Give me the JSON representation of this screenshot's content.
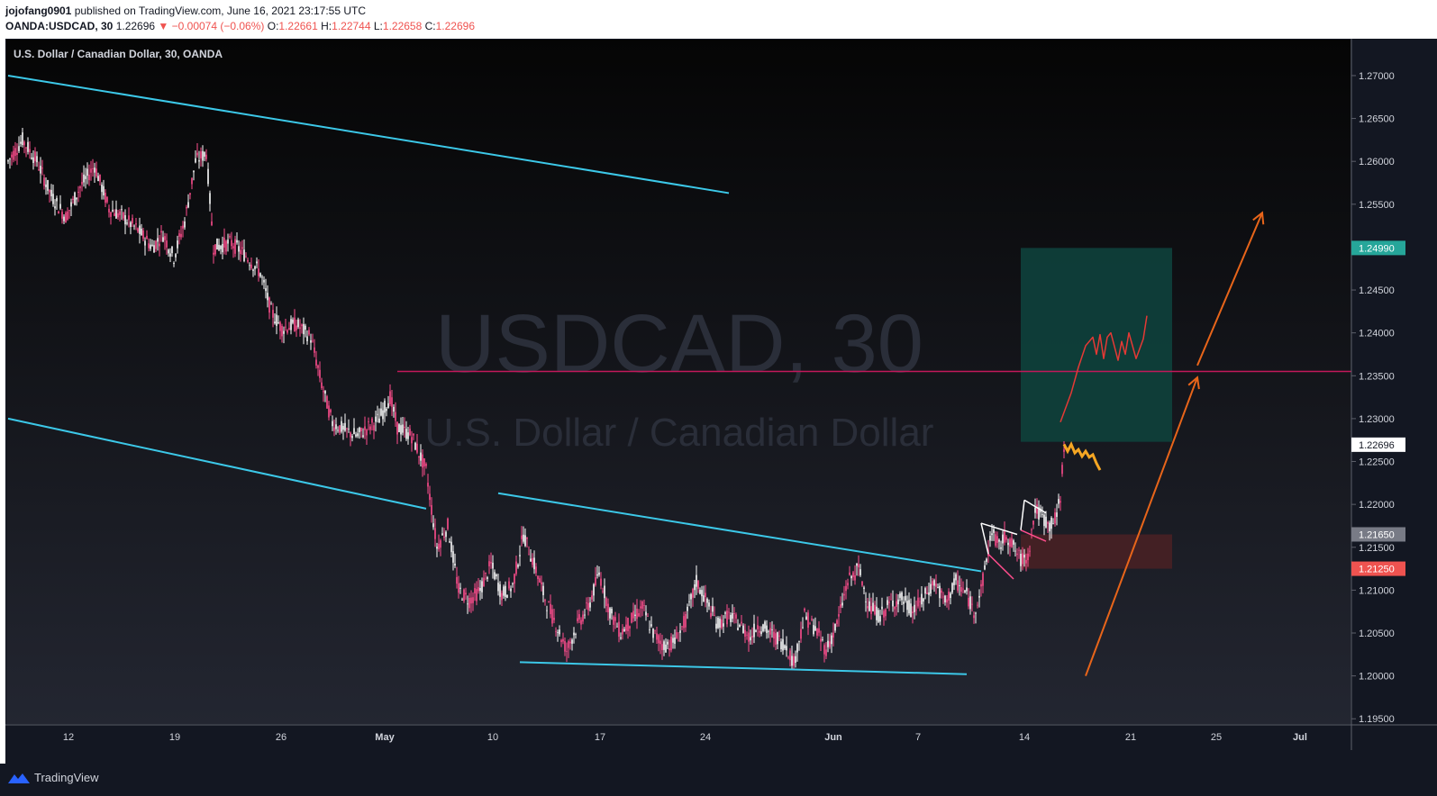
{
  "header": {
    "author": "jojofang0901",
    "published": "published on TradingView.com, June 16, 2021 23:17:55 UTC",
    "symbol": "OANDA:USDCAD, 30",
    "last": "1.22696",
    "change": "▼ −0.00074 (−0.06%)",
    "o_label": "O:",
    "o_value": "1.22661",
    "h_label": "H:",
    "h_value": "1.22744",
    "l_label": "L:",
    "l_value": "1.22658",
    "c_label": "C:",
    "c_value": "1.22696"
  },
  "chart_title": "U.S. Dollar / Canadian Dollar, 30, OANDA",
  "watermark": {
    "main": "USDCAD, 30",
    "sub": "U.S. Dollar / Canadian Dollar"
  },
  "footer": {
    "brand": "TradingView"
  },
  "colors": {
    "background_top": "#050505",
    "background_bottom": "#232631",
    "candles": "#ff4d8d",
    "candle_alt": "#ffffff",
    "trendline": "#3cc8e8",
    "horizontal_line": "#c2185b",
    "arrow": "#e8651a",
    "path_red": "#e53935",
    "projection": "#f5a623",
    "target_zone": "#0d4a43",
    "stop_zone": "#4a2125"
  },
  "chart_data": {
    "type": "candlestick",
    "symbol": "USDCAD",
    "timeframe": "30",
    "x_ticks": [
      "12",
      "19",
      "26",
      "May",
      "10",
      "17",
      "24",
      "Jun",
      "7",
      "14",
      "21",
      "25",
      "Jul"
    ],
    "y_ticks": [
      "1.27000",
      "1.26500",
      "1.26000",
      "1.25500",
      "1.25000",
      "1.24500",
      "1.24000",
      "1.23500",
      "1.23000",
      "1.22500",
      "1.22000",
      "1.21500",
      "1.21000",
      "1.20500",
      "1.20000",
      "1.19500"
    ],
    "ylim": [
      1.1945,
      1.2743
    ],
    "price_labels": [
      {
        "value": 1.2499,
        "text": "1.24990",
        "color": "#26a69a"
      },
      {
        "value": 1.22696,
        "text": "1.22696",
        "color": "#ffffff"
      },
      {
        "value": 1.2165,
        "text": "1.21650",
        "color": "#787b86"
      },
      {
        "value": 1.2125,
        "text": "1.21250",
        "color": "#ef5350"
      }
    ],
    "price_path": [
      [
        0,
        1.26
      ],
      [
        4,
        1.2625
      ],
      [
        8,
        1.26
      ],
      [
        12,
        1.256
      ],
      [
        16,
        1.2535
      ],
      [
        20,
        1.257
      ],
      [
        24,
        1.2595
      ],
      [
        28,
        1.2545
      ],
      [
        32,
        1.2535
      ],
      [
        36,
        1.252
      ],
      [
        40,
        1.25
      ],
      [
        43,
        1.2515
      ],
      [
        46,
        1.2488
      ],
      [
        49,
        1.253
      ],
      [
        52,
        1.26
      ],
      [
        55,
        1.261
      ],
      [
        57,
        1.25
      ],
      [
        62,
        1.2505
      ],
      [
        66,
        1.249
      ],
      [
        70,
        1.247
      ],
      [
        73,
        1.2425
      ],
      [
        76,
        1.2405
      ],
      [
        80,
        1.241
      ],
      [
        84,
        1.2395
      ],
      [
        87,
        1.234
      ],
      [
        90,
        1.2295
      ],
      [
        94,
        1.2285
      ],
      [
        97,
        1.228
      ],
      [
        100,
        1.229
      ],
      [
        103,
        1.23
      ],
      [
        106,
        1.2325
      ],
      [
        108,
        1.229
      ],
      [
        112,
        1.228
      ],
      [
        116,
        1.224
      ],
      [
        119,
        1.215
      ],
      [
        122,
        1.2175
      ],
      [
        125,
        1.21
      ],
      [
        128,
        1.2088
      ],
      [
        131,
        1.21
      ],
      [
        134,
        1.213
      ],
      [
        137,
        1.2095
      ],
      [
        140,
        1.2105
      ],
      [
        143,
        1.2165
      ],
      [
        146,
        1.213
      ],
      [
        149,
        1.209
      ],
      [
        152,
        1.206
      ],
      [
        155,
        1.203
      ],
      [
        158,
        1.206
      ],
      [
        161,
        1.208
      ],
      [
        164,
        1.212
      ],
      [
        167,
        1.2075
      ],
      [
        170,
        1.205
      ],
      [
        173,
        1.2065
      ],
      [
        176,
        1.208
      ],
      [
        179,
        1.205
      ],
      [
        182,
        1.2035
      ],
      [
        185,
        1.204
      ],
      [
        188,
        1.2065
      ],
      [
        191,
        1.211
      ],
      [
        194,
        1.2085
      ],
      [
        197,
        1.206
      ],
      [
        200,
        1.207
      ],
      [
        203,
        1.206
      ],
      [
        206,
        1.2045
      ],
      [
        208,
        1.206
      ],
      [
        210,
        1.2055
      ],
      [
        213,
        1.2045
      ],
      [
        216,
        1.2035
      ],
      [
        218,
        1.2015
      ],
      [
        221,
        1.207
      ],
      [
        224,
        1.2055
      ],
      [
        227,
        1.203
      ],
      [
        230,
        1.206
      ],
      [
        233,
        1.211
      ],
      [
        236,
        1.2125
      ],
      [
        239,
        1.208
      ],
      [
        242,
        1.207
      ],
      [
        245,
        1.2085
      ],
      [
        248,
        1.209
      ],
      [
        251,
        1.2075
      ],
      [
        254,
        1.209
      ],
      [
        257,
        1.211
      ],
      [
        260,
        1.2085
      ],
      [
        263,
        1.211
      ],
      [
        266,
        1.2095
      ],
      [
        268,
        1.2075
      ],
      [
        270,
        1.21
      ],
      [
        273,
        1.217
      ],
      [
        275,
        1.215
      ],
      [
        277,
        1.2165
      ],
      [
        279,
        1.215
      ],
      [
        281,
        1.2135
      ],
      [
        283,
        1.214
      ],
      [
        285,
        1.2195
      ],
      [
        287,
        1.2185
      ],
      [
        289,
        1.2175
      ],
      [
        291,
        1.2185
      ],
      [
        292,
        1.221
      ],
      [
        293,
        1.227
      ]
    ],
    "projection_path": [
      [
        293,
        1.227
      ],
      [
        294,
        1.2262
      ],
      [
        295,
        1.227
      ],
      [
        296,
        1.226
      ],
      [
        297,
        1.2264
      ],
      [
        298,
        1.2256
      ],
      [
        299,
        1.2262
      ],
      [
        300,
        1.2255
      ],
      [
        301,
        1.2258
      ],
      [
        302,
        1.2248
      ],
      [
        303,
        1.224
      ]
    ],
    "trendlines": [
      {
        "from": [
          0,
          1.27
        ],
        "to": [
          200,
          1.2563
        ]
      },
      {
        "from": [
          0,
          1.23
        ],
        "to": [
          116,
          1.2195
        ]
      },
      {
        "from": [
          136,
          1.2213
        ],
        "to": [
          270,
          1.2122
        ]
      },
      {
        "from": [
          142,
          1.2016
        ],
        "to": [
          266,
          1.2002
        ]
      }
    ],
    "horizontal_line": 1.2355,
    "target_zone": {
      "top": 1.2499,
      "bottom": 1.2273,
      "from": 281,
      "to": 323
    },
    "stop_zone": {
      "top": 1.2165,
      "bottom": 1.2125,
      "from": 281,
      "to": 323
    },
    "arrows": [
      {
        "from": [
          299,
          1.2
        ],
        "to": [
          330,
          1.2348
        ]
      },
      {
        "from": [
          330,
          1.2362
        ],
        "to": [
          348,
          1.254
        ]
      }
    ],
    "red_path": [
      [
        292,
        1.2296
      ],
      [
        295,
        1.233
      ],
      [
        297,
        1.236
      ],
      [
        299,
        1.2385
      ],
      [
        301,
        1.2395
      ],
      [
        302,
        1.2375
      ],
      [
        303,
        1.2398
      ],
      [
        304,
        1.237
      ],
      [
        305,
        1.2395
      ],
      [
        306,
        1.24
      ],
      [
        308,
        1.2368
      ],
      [
        309,
        1.239
      ],
      [
        310,
        1.2375
      ],
      [
        311,
        1.24
      ],
      [
        313,
        1.237
      ],
      [
        315,
        1.2393
      ],
      [
        316,
        1.242
      ]
    ],
    "flags": [
      {
        "points": [
          [
            270,
            1.2178
          ],
          [
            280,
            1.2165
          ],
          [
            272,
            1.2142
          ],
          [
            279,
            1.2113
          ]
        ]
      },
      {
        "points": [
          [
            282,
            1.2205
          ],
          [
            288,
            1.219
          ],
          [
            281,
            1.217
          ],
          [
            288,
            1.2157
          ]
        ]
      }
    ]
  }
}
